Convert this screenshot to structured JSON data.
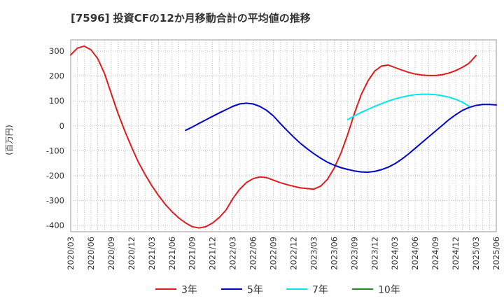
{
  "chart_data": {
    "type": "line",
    "title": "[7596]  投資CFの12か月移動合計の平均値の推移",
    "ylabel": "(百万円)",
    "xlabel": "",
    "ylim": [
      -425,
      345
    ],
    "yticks": [
      300,
      200,
      100,
      0,
      -100,
      -200,
      -300,
      -400
    ],
    "xticks": [
      "2020/03",
      "2020/06",
      "2020/09",
      "2020/12",
      "2021/03",
      "2021/06",
      "2021/09",
      "2021/12",
      "2022/03",
      "2022/06",
      "2022/09",
      "2022/12",
      "2023/03",
      "2023/06",
      "2023/09",
      "2023/12",
      "2024/03",
      "2024/06",
      "2024/09",
      "2024/12",
      "2025/03",
      "2025/06"
    ],
    "grid": true,
    "legend_position": "bottom",
    "series": [
      {
        "name": "3年",
        "color": "#e31a1c",
        "start": "2020/03",
        "values": [
          285,
          312,
          320,
          305,
          270,
          210,
          130,
          50,
          -20,
          -85,
          -145,
          -195,
          -240,
          -280,
          -315,
          -345,
          -370,
          -390,
          -405,
          -410,
          -405,
          -390,
          -368,
          -338,
          -292,
          -255,
          -228,
          -212,
          -205,
          -208,
          -218,
          -228,
          -236,
          -243,
          -249,
          -252,
          -254,
          -242,
          -215,
          -170,
          -110,
          -35,
          50,
          125,
          180,
          220,
          240,
          244,
          234,
          224,
          215,
          208,
          204,
          202,
          202,
          205,
          212,
          222,
          235,
          252,
          282
        ]
      },
      {
        "name": "5年",
        "color": "#0000cc",
        "start": "2021/08",
        "values": [
          -18,
          -5,
          10,
          24,
          38,
          52,
          65,
          78,
          88,
          91,
          88,
          78,
          62,
          40,
          10,
          -18,
          -45,
          -70,
          -92,
          -112,
          -130,
          -146,
          -158,
          -168,
          -175,
          -181,
          -185,
          -186,
          -183,
          -176,
          -166,
          -152,
          -134,
          -113,
          -90,
          -67,
          -44,
          -21,
          2,
          25,
          45,
          62,
          74,
          82,
          86,
          86,
          84
        ]
      },
      {
        "name": "7年",
        "color": "#00e5ee",
        "start": "2023/08",
        "values": [
          25,
          40,
          54,
          66,
          78,
          89,
          99,
          108,
          115,
          121,
          125,
          127,
          127,
          125,
          121,
          115,
          106,
          95,
          78
        ]
      },
      {
        "name": "10年",
        "color": "#228b22",
        "start": "2025/03",
        "values": []
      }
    ]
  }
}
